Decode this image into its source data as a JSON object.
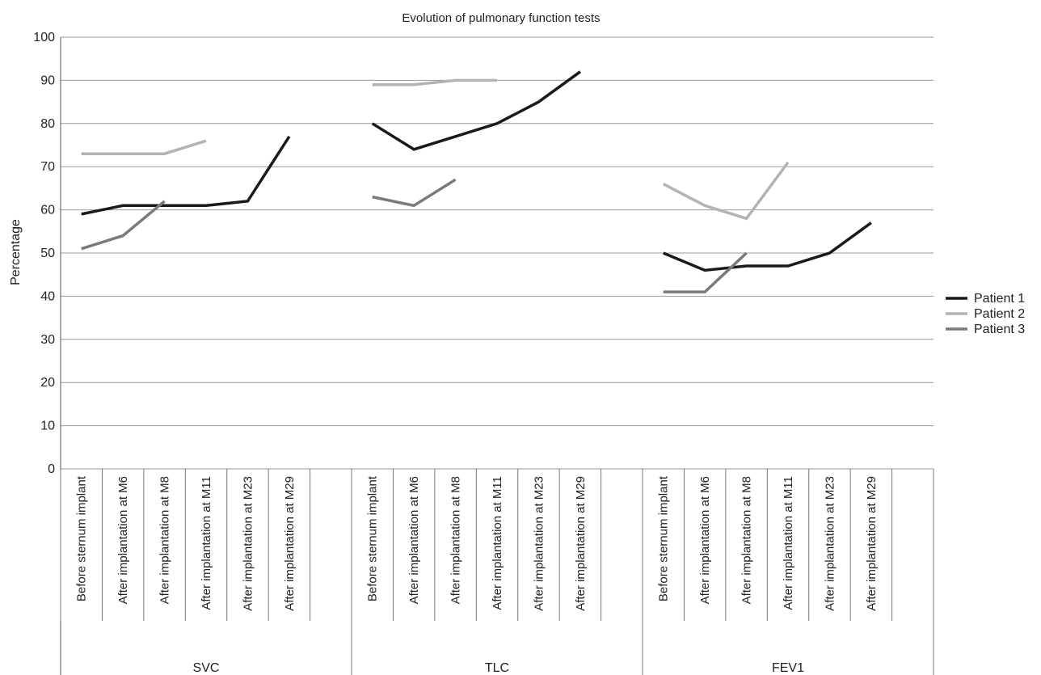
{
  "chart_data": {
    "type": "line",
    "title": "Evolution of pulmonary function tests",
    "ylabel": "Percentage",
    "xlabel": "",
    "ylim": [
      0,
      100
    ],
    "yticks": [
      0,
      10,
      20,
      30,
      40,
      50,
      60,
      70,
      80,
      90,
      100
    ],
    "grid": true,
    "legend_position": "right",
    "groups": [
      "SVC",
      "TLC",
      "FEV1"
    ],
    "categories": [
      "Before sternum implant",
      "After implantation at M6",
      "After implantation at M8",
      "After implantation at M11",
      "After implantation at M23",
      "After implantation at M29"
    ],
    "series": [
      {
        "name": "Patient 1",
        "color": "#1a1a1a",
        "values": [
          [
            59,
            61,
            61,
            61,
            62,
            77
          ],
          [
            80,
            74,
            77,
            80,
            85,
            92
          ],
          [
            50,
            46,
            47,
            47,
            50,
            57
          ]
        ]
      },
      {
        "name": "Patient 2",
        "color": "#b3b3b3",
        "values": [
          [
            73,
            73,
            73,
            76,
            null,
            null
          ],
          [
            89,
            89,
            90,
            90,
            null,
            null
          ],
          [
            66,
            61,
            58,
            71,
            null,
            null
          ]
        ]
      },
      {
        "name": "Patient 3",
        "color": "#7a7a7a",
        "values": [
          [
            51,
            54,
            62,
            null,
            null,
            null
          ],
          [
            63,
            61,
            67,
            null,
            null,
            null
          ],
          [
            41,
            41,
            50,
            null,
            null,
            null
          ]
        ]
      }
    ]
  }
}
